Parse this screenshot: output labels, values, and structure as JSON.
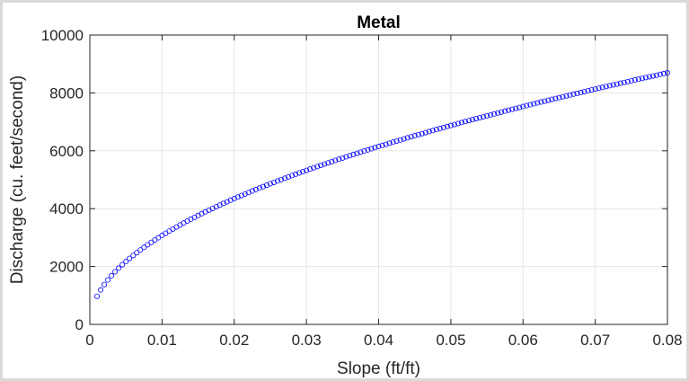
{
  "chart_data": {
    "type": "scatter",
    "title": "Metal",
    "xlabel": "Slope (ft/ft)",
    "ylabel": "Discharge (cu. feet/second)",
    "xlim": [
      0,
      0.08
    ],
    "ylim": [
      0,
      10000
    ],
    "x_ticks": [
      "0",
      "0.01",
      "0.02",
      "0.03",
      "0.04",
      "0.05",
      "0.06",
      "0.07",
      "0.08"
    ],
    "y_ticks": [
      "0",
      "2000",
      "4000",
      "6000",
      "8000",
      "10000"
    ],
    "grid": true,
    "marker": "circle-open",
    "marker_color": "#0000ff",
    "series": [
      {
        "x_start": 0.001,
        "x_step": 0.0005,
        "x_end": 0.08,
        "y_at_x_start": 972,
        "y_at_x_end": 8694,
        "y_rule": "y = y_at_x_end * sqrt(x / x_end)"
      }
    ]
  }
}
